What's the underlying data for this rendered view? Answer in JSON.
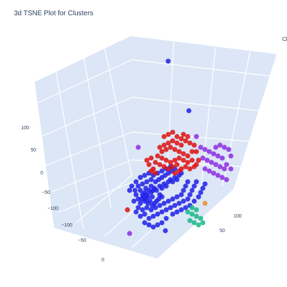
{
  "chart_data": {
    "type": "scatter",
    "title": "3d TSNE Plot for Clusters",
    "legend_title": "Cl",
    "projection": "3d",
    "axis_background": "#dbe6f6",
    "grid_color": "#ffffff",
    "z_ticks": [
      "100",
      "50",
      "0",
      "−50",
      "−100"
    ],
    "x_ticks": [
      "−100",
      "−50",
      "0"
    ],
    "y_ticks": [
      "100",
      "50"
    ],
    "series": [
      {
        "color": "#1f1fe8",
        "points": [
          [
            41,
            88
          ],
          [
            43,
            86
          ],
          [
            45,
            88
          ],
          [
            47,
            86
          ],
          [
            49,
            90
          ],
          [
            51,
            86
          ],
          [
            42,
            84
          ],
          [
            44,
            82
          ],
          [
            46,
            84
          ],
          [
            48,
            80
          ],
          [
            50,
            82
          ],
          [
            52,
            80
          ],
          [
            40,
            80
          ],
          [
            45,
            78
          ],
          [
            50,
            76
          ],
          [
            53,
            78
          ],
          [
            55,
            80
          ],
          [
            58,
            76
          ],
          [
            60,
            78
          ],
          [
            62,
            74
          ],
          [
            64,
            76
          ],
          [
            66,
            72
          ],
          [
            68,
            70
          ],
          [
            70,
            72
          ],
          [
            72,
            68
          ],
          [
            74,
            70
          ],
          [
            76,
            66
          ],
          [
            78,
            64
          ],
          [
            58,
            84
          ],
          [
            60,
            86
          ],
          [
            57,
            88
          ],
          [
            55,
            90
          ],
          [
            53,
            92
          ],
          [
            51,
            94
          ],
          [
            47,
            92
          ],
          [
            44,
            90
          ],
          [
            40,
            92
          ],
          [
            38,
            88
          ],
          [
            36,
            84
          ],
          [
            35,
            80
          ],
          [
            38,
            76
          ],
          [
            42,
            74
          ],
          [
            46,
            72
          ],
          [
            50,
            70
          ],
          [
            54,
            72
          ],
          [
            57,
            70
          ],
          [
            60,
            68
          ],
          [
            63,
            66
          ],
          [
            66,
            64
          ],
          [
            69,
            62
          ],
          [
            72,
            60
          ],
          [
            38,
            96
          ],
          [
            42,
            98
          ],
          [
            46,
            96
          ],
          [
            50,
            98
          ],
          [
            54,
            96
          ],
          [
            58,
            94
          ],
          [
            62,
            92
          ],
          [
            66,
            90
          ],
          [
            70,
            88
          ],
          [
            74,
            86
          ],
          [
            78,
            84
          ],
          [
            80,
            80
          ],
          [
            82,
            76
          ],
          [
            84,
            72
          ],
          [
            36,
            72
          ],
          [
            40,
            68
          ],
          [
            44,
            66
          ],
          [
            48,
            64
          ],
          [
            52,
            66
          ],
          [
            56,
            64
          ],
          [
            60,
            62
          ],
          [
            64,
            60
          ],
          [
            68,
            58
          ],
          [
            32,
            76
          ],
          [
            30,
            80
          ],
          [
            34,
            90
          ],
          [
            36,
            100
          ],
          [
            40,
            104
          ],
          [
            44,
            102
          ],
          [
            48,
            106
          ],
          [
            52,
            104
          ],
          [
            56,
            102
          ],
          [
            60,
            100
          ],
          [
            64,
            98
          ],
          [
            68,
            96
          ],
          [
            72,
            94
          ],
          [
            76,
            92
          ],
          [
            80,
            90
          ],
          [
            84,
            88
          ],
          [
            86,
            84
          ],
          [
            88,
            80
          ],
          [
            90,
            76
          ],
          [
            92,
            72
          ],
          [
            60,
            110
          ],
          [
            56,
            112
          ],
          [
            52,
            114
          ],
          [
            48,
            112
          ],
          [
            44,
            110
          ],
          [
            64,
            106
          ],
          [
            70,
            102
          ],
          [
            74,
            100
          ],
          [
            78,
            98
          ],
          [
            82,
            96
          ],
          [
            86,
            94
          ],
          [
            90,
            90
          ],
          [
            94,
            86
          ],
          [
            96,
            82
          ],
          [
            98,
            78
          ],
          [
            100,
            74
          ],
          [
            85,
            6
          ],
          [
            88,
            -170
          ],
          [
            100,
            60
          ]
        ]
      },
      {
        "color": "#dd1010",
        "points": [
          [
            58,
            40
          ],
          [
            62,
            38
          ],
          [
            66,
            36
          ],
          [
            70,
            34
          ],
          [
            74,
            36
          ],
          [
            78,
            38
          ],
          [
            60,
            44
          ],
          [
            64,
            42
          ],
          [
            68,
            40
          ],
          [
            72,
            42
          ],
          [
            76,
            44
          ],
          [
            80,
            46
          ],
          [
            84,
            48
          ],
          [
            56,
            48
          ],
          [
            60,
            50
          ],
          [
            64,
            52
          ],
          [
            68,
            54
          ],
          [
            72,
            52
          ],
          [
            76,
            50
          ],
          [
            80,
            52
          ],
          [
            84,
            54
          ],
          [
            88,
            52
          ],
          [
            54,
            54
          ],
          [
            58,
            56
          ],
          [
            62,
            58
          ],
          [
            66,
            60
          ],
          [
            70,
            58
          ],
          [
            74,
            56
          ],
          [
            78,
            60
          ],
          [
            82,
            58
          ],
          [
            86,
            60
          ],
          [
            90,
            58
          ],
          [
            92,
            56
          ],
          [
            94,
            52
          ],
          [
            62,
            30
          ],
          [
            66,
            28
          ],
          [
            70,
            26
          ],
          [
            74,
            30
          ],
          [
            78,
            32
          ],
          [
            82,
            34
          ],
          [
            86,
            36
          ],
          [
            90,
            38
          ],
          [
            88,
            44
          ],
          [
            52,
            60
          ],
          [
            48,
            56
          ],
          [
            50,
            62
          ],
          [
            54,
            64
          ],
          [
            72,
            64
          ],
          [
            76,
            62
          ],
          [
            28,
            98
          ],
          [
            80,
            28
          ],
          [
            84,
            30
          ],
          [
            92,
            44
          ],
          [
            50,
            50
          ],
          [
            46,
            52
          ]
        ]
      },
      {
        "color": "#8b2be2",
        "points": [
          [
            96,
            40
          ],
          [
            100,
            42
          ],
          [
            104,
            44
          ],
          [
            108,
            46
          ],
          [
            112,
            48
          ],
          [
            116,
            50
          ],
          [
            98,
            50
          ],
          [
            102,
            52
          ],
          [
            106,
            54
          ],
          [
            110,
            56
          ],
          [
            114,
            58
          ],
          [
            118,
            60
          ],
          [
            100,
            60
          ],
          [
            104,
            62
          ],
          [
            108,
            64
          ],
          [
            112,
            66
          ],
          [
            116,
            68
          ],
          [
            120,
            70
          ],
          [
            110,
            40
          ],
          [
            114,
            38
          ],
          [
            118,
            40
          ],
          [
            122,
            42
          ],
          [
            30,
            120
          ],
          [
            38,
            40
          ],
          [
            92,
            30
          ],
          [
            120,
            56
          ],
          [
            124,
            60
          ],
          [
            124,
            48
          ]
        ]
      },
      {
        "color": "#16b886",
        "points": [
          [
            84,
            100
          ],
          [
            88,
            102
          ],
          [
            92,
            104
          ],
          [
            96,
            106
          ],
          [
            86,
            108
          ],
          [
            90,
            110
          ],
          [
            94,
            112
          ],
          [
            98,
            110
          ],
          [
            88,
            96
          ],
          [
            92,
            98
          ]
        ]
      },
      {
        "color": "#f08c2c",
        "points": [
          [
            100,
            92
          ]
        ]
      }
    ]
  }
}
